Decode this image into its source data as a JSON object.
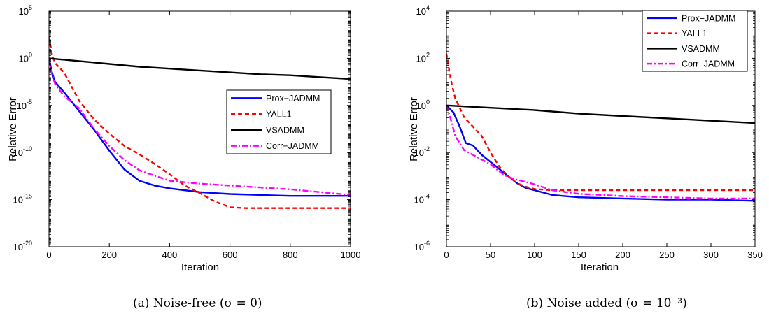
{
  "chart_data": [
    {
      "type": "line",
      "xlabel": "Iteration",
      "ylabel": "Relative Error",
      "yscale": "log",
      "xlim": [
        0,
        1000
      ],
      "ylim_exp": [
        -20,
        5
      ],
      "xticks": [
        0,
        200,
        400,
        600,
        800,
        1000
      ],
      "yticks_exp": [
        -20,
        -15,
        -10,
        -5,
        0,
        5
      ],
      "grid": false,
      "legend": "center-right",
      "caption": "(a) Noise-free (σ = 0)",
      "series": [
        {
          "name": "Prox−JADMM",
          "color": "#0000ff",
          "dash": "",
          "points": [
            [
              0,
              0
            ],
            [
              10,
              -1.5
            ],
            [
              20,
              -2.5
            ],
            [
              50,
              -3.6
            ],
            [
              100,
              -5.6
            ],
            [
              150,
              -7.6
            ],
            [
              200,
              -9.8
            ],
            [
              250,
              -11.8
            ],
            [
              300,
              -13.0
            ],
            [
              350,
              -13.5
            ],
            [
              400,
              -13.8
            ],
            [
              500,
              -14.2
            ],
            [
              600,
              -14.4
            ],
            [
              800,
              -14.6
            ],
            [
              1000,
              -14.6
            ]
          ]
        },
        {
          "name": "YALL1",
          "color": "#ff0000",
          "dash": "6,4",
          "points": [
            [
              0,
              2.3
            ],
            [
              10,
              0.4
            ],
            [
              20,
              -0.5
            ],
            [
              50,
              -1.5
            ],
            [
              100,
              -4.5
            ],
            [
              150,
              -6.5
            ],
            [
              200,
              -8.0
            ],
            [
              250,
              -9.3
            ],
            [
              300,
              -10.2
            ],
            [
              350,
              -11.2
            ],
            [
              400,
              -12.3
            ],
            [
              450,
              -13.5
            ],
            [
              500,
              -14.3
            ],
            [
              550,
              -15.2
            ],
            [
              600,
              -15.8
            ],
            [
              650,
              -15.9
            ],
            [
              700,
              -15.9
            ],
            [
              1000,
              -15.9
            ]
          ]
        },
        {
          "name": "VSADMM",
          "color": "#000000",
          "dash": "",
          "points": [
            [
              0,
              0
            ],
            [
              100,
              -0.3
            ],
            [
              200,
              -0.6
            ],
            [
              300,
              -0.9
            ],
            [
              400,
              -1.1
            ],
            [
              500,
              -1.3
            ],
            [
              600,
              -1.5
            ],
            [
              700,
              -1.7
            ],
            [
              800,
              -1.8
            ],
            [
              900,
              -2.0
            ],
            [
              1000,
              -2.2
            ]
          ]
        },
        {
          "name": "Corr−JADMM",
          "color": "#ff00ff",
          "dash": "8,3,2,3",
          "points": [
            [
              0,
              0
            ],
            [
              10,
              -1.7
            ],
            [
              20,
              -2.7
            ],
            [
              50,
              -4.0
            ],
            [
              100,
              -5.3
            ],
            [
              150,
              -7.5
            ],
            [
              200,
              -9.3
            ],
            [
              250,
              -10.8
            ],
            [
              300,
              -11.9
            ],
            [
              400,
              -13.0
            ],
            [
              500,
              -13.3
            ],
            [
              600,
              -13.5
            ],
            [
              700,
              -13.7
            ],
            [
              800,
              -13.9
            ],
            [
              900,
              -14.2
            ],
            [
              1000,
              -14.5
            ]
          ]
        }
      ]
    },
    {
      "type": "line",
      "xlabel": "Iteration",
      "ylabel": "Relative Error",
      "yscale": "log",
      "xlim": [
        0,
        350
      ],
      "ylim_exp": [
        -6,
        4
      ],
      "xticks": [
        0,
        50,
        100,
        150,
        200,
        250,
        300,
        350
      ],
      "yticks_exp": [
        -6,
        -4,
        -2,
        0,
        2,
        4
      ],
      "grid": false,
      "legend": "top-right",
      "caption": "(b) Noise added (σ = 10⁻³)",
      "series": [
        {
          "name": "Prox−JADMM",
          "color": "#0000ff",
          "dash": "",
          "points": [
            [
              0,
              0
            ],
            [
              8,
              -0.3
            ],
            [
              15,
              -0.9
            ],
            [
              22,
              -1.6
            ],
            [
              30,
              -1.7
            ],
            [
              35,
              -1.9
            ],
            [
              40,
              -2.1
            ],
            [
              50,
              -2.4
            ],
            [
              60,
              -2.7
            ],
            [
              70,
              -3.0
            ],
            [
              80,
              -3.3
            ],
            [
              90,
              -3.5
            ],
            [
              100,
              -3.6
            ],
            [
              120,
              -3.8
            ],
            [
              150,
              -3.9
            ],
            [
              200,
              -3.95
            ],
            [
              250,
              -4.0
            ],
            [
              300,
              -4.0
            ],
            [
              350,
              -4.05
            ]
          ]
        },
        {
          "name": "YALL1",
          "color": "#ff0000",
          "dash": "6,4",
          "points": [
            [
              0,
              2.2
            ],
            [
              3,
              1.5
            ],
            [
              6,
              0.9
            ],
            [
              10,
              0.3
            ],
            [
              20,
              -0.5
            ],
            [
              30,
              -0.9
            ],
            [
              40,
              -1.3
            ],
            [
              50,
              -2.0
            ],
            [
              60,
              -2.6
            ],
            [
              70,
              -3.0
            ],
            [
              80,
              -3.3
            ],
            [
              90,
              -3.45
            ],
            [
              100,
              -3.55
            ],
            [
              120,
              -3.6
            ],
            [
              150,
              -3.6
            ],
            [
              350,
              -3.6
            ]
          ]
        },
        {
          "name": "VSADMM",
          "color": "#000000",
          "dash": "",
          "points": [
            [
              0,
              0
            ],
            [
              50,
              -0.1
            ],
            [
              100,
              -0.2
            ],
            [
              150,
              -0.35
            ],
            [
              200,
              -0.45
            ],
            [
              250,
              -0.55
            ],
            [
              300,
              -0.65
            ],
            [
              350,
              -0.75
            ]
          ]
        },
        {
          "name": "Corr−JADMM",
          "color": "#ff00ff",
          "dash": "8,3,2,3",
          "points": [
            [
              0,
              0
            ],
            [
              5,
              -0.6
            ],
            [
              10,
              -1.3
            ],
            [
              20,
              -1.9
            ],
            [
              30,
              -2.1
            ],
            [
              40,
              -2.3
            ],
            [
              50,
              -2.5
            ],
            [
              60,
              -2.8
            ],
            [
              70,
              -3.05
            ],
            [
              80,
              -3.15
            ],
            [
              90,
              -3.25
            ],
            [
              100,
              -3.35
            ],
            [
              120,
              -3.6
            ],
            [
              150,
              -3.75
            ],
            [
              200,
              -3.85
            ],
            [
              250,
              -3.9
            ],
            [
              300,
              -3.95
            ],
            [
              350,
              -3.95
            ]
          ]
        }
      ]
    }
  ]
}
